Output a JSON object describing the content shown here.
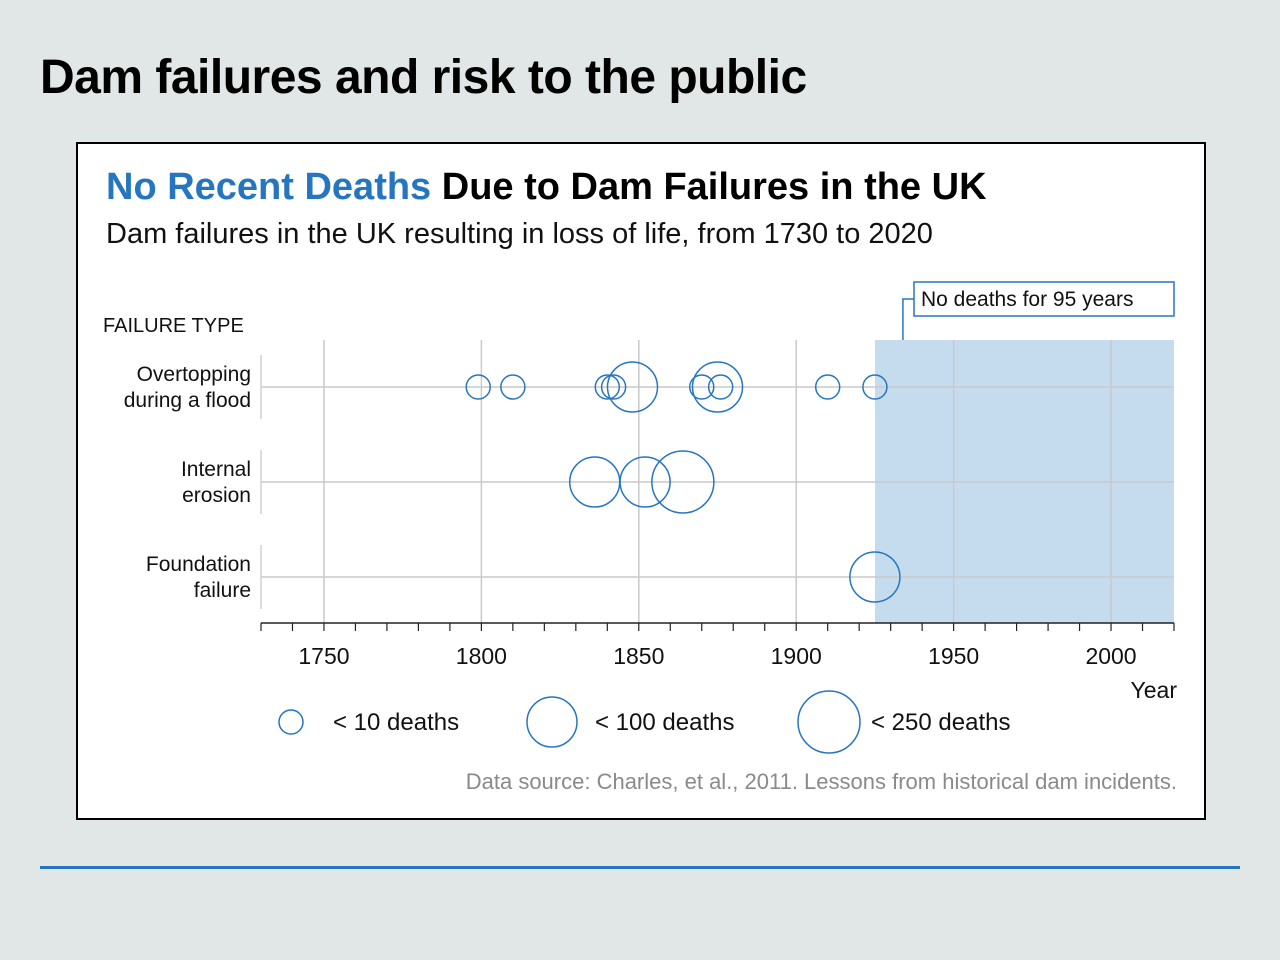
{
  "slide": {
    "title": "Dam failures and risk to the public"
  },
  "colors": {
    "accent": "#2676bf",
    "shade": "#c5dcef",
    "grid": "#c9c9c9",
    "source_text": "#8a8a8a"
  },
  "chart_data": {
    "type": "scatter",
    "title_accent": "No Recent Deaths",
    "title_rest": " Due to Dam Failures in the UK",
    "subtitle": "Dam failures in the UK resulting in loss of life, from 1730 to 2020",
    "ylabel": "FAILURE TYPE",
    "xlabel": "Year",
    "xlim": [
      1730,
      2020
    ],
    "x_ticks": [
      "1750",
      "1800",
      "1850",
      "1900",
      "1950",
      "2000"
    ],
    "categories": [
      [
        "Overtopping",
        "during a flood"
      ],
      [
        "Internal",
        "erosion"
      ],
      [
        "Foundation",
        "failure"
      ]
    ],
    "size_classes": [
      {
        "key": "s",
        "label": "< 10 deaths"
      },
      {
        "key": "m",
        "label": "< 100 deaths"
      },
      {
        "key": "l",
        "label": "< 250 deaths"
      }
    ],
    "points": [
      {
        "category": 0,
        "year": 1799,
        "size": "s"
      },
      {
        "category": 0,
        "year": 1810,
        "size": "s"
      },
      {
        "category": 0,
        "year": 1840,
        "size": "s"
      },
      {
        "category": 0,
        "year": 1842,
        "size": "s"
      },
      {
        "category": 0,
        "year": 1848,
        "size": "m"
      },
      {
        "category": 0,
        "year": 1870,
        "size": "s"
      },
      {
        "category": 0,
        "year": 1875,
        "size": "m"
      },
      {
        "category": 0,
        "year": 1876,
        "size": "s"
      },
      {
        "category": 0,
        "year": 1910,
        "size": "s"
      },
      {
        "category": 0,
        "year": 1925,
        "size": "s"
      },
      {
        "category": 1,
        "year": 1836,
        "size": "m"
      },
      {
        "category": 1,
        "year": 1852,
        "size": "m"
      },
      {
        "category": 1,
        "year": 1864,
        "size": "l"
      },
      {
        "category": 2,
        "year": 1925,
        "size": "m"
      }
    ],
    "shaded_region": {
      "x_start": 1925,
      "x_end": 2020,
      "label": "No deaths for 95 years"
    },
    "source": "Data source: Charles, et al., 2011. Lessons from historical dam incidents."
  }
}
